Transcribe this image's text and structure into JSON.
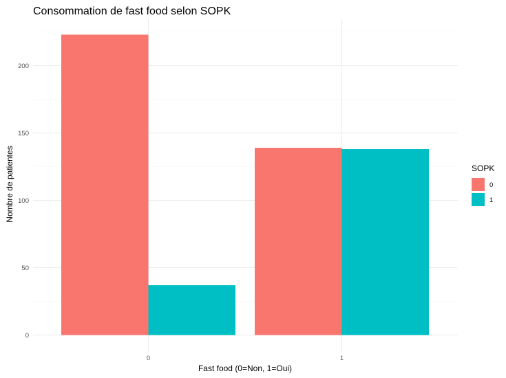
{
  "chart_data": {
    "type": "bar",
    "title": "Consommation de fast food selon SOPK",
    "xlabel": "Fast food (0=Non, 1=Oui)",
    "ylabel": "Nombre de patientes",
    "categories": [
      "0",
      "1"
    ],
    "series": [
      {
        "name": "0",
        "color": "#F8766D",
        "values": [
          223,
          139
        ]
      },
      {
        "name": "1",
        "color": "#00BFC4",
        "values": [
          37,
          138
        ]
      }
    ],
    "ylim": [
      0,
      235
    ],
    "yticks": [
      0,
      50,
      100,
      150,
      200
    ],
    "grid": true,
    "legend": {
      "title": "SOPK",
      "position": "right"
    },
    "colors": {
      "grid_major": "#ebebeb",
      "grid_minor": "#f5f5f5",
      "tick_text": "#4d4d4d"
    }
  }
}
